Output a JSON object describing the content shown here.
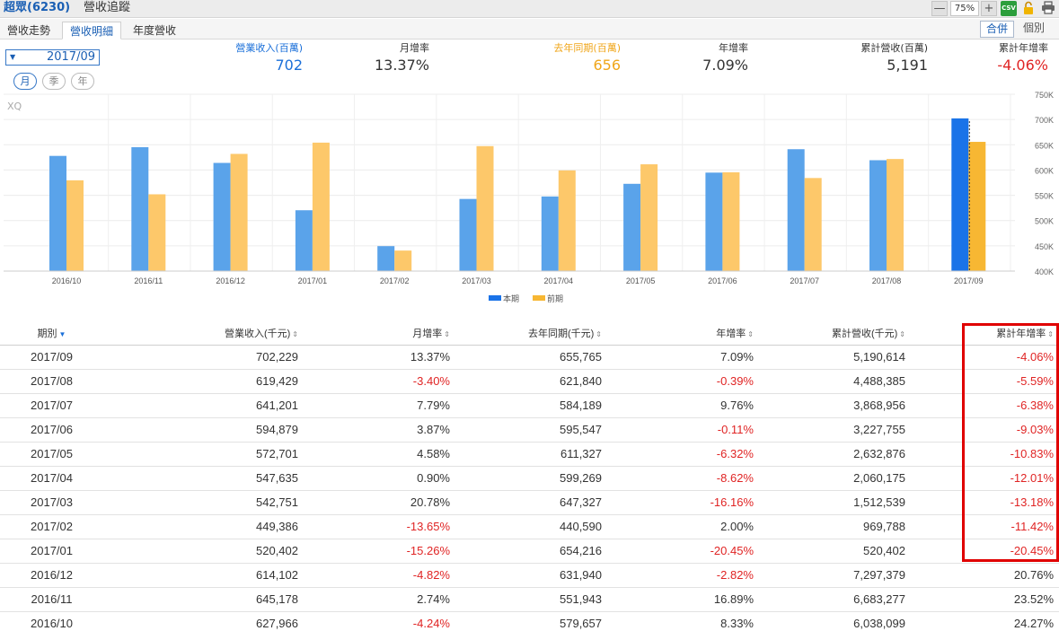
{
  "title": {
    "stock": "超眾(6230)",
    "page": "營收追蹤"
  },
  "toolbar": {
    "zoom": "75%",
    "csv": "CSV",
    "minus": "—",
    "plus": "+"
  },
  "tabs": [
    "營收走勢",
    "營收明細",
    "年度營收"
  ],
  "active_tab": "營收明細",
  "view_toggle": {
    "combined": "合併",
    "individual": "個別"
  },
  "period_select": {
    "value": "2017/09"
  },
  "period_types": [
    "月",
    "季",
    "年"
  ],
  "stats": [
    {
      "label": "營業收入(百萬)",
      "value": "702",
      "color": "blue"
    },
    {
      "label": "月增率",
      "value": "13.37%",
      "color": "dark"
    },
    {
      "label": "去年同期(百萬)",
      "value": "656",
      "color": "orange"
    },
    {
      "label": "年增率",
      "value": "7.09%",
      "color": "dark"
    },
    {
      "label": "累計營收(百萬)",
      "value": "5,191",
      "color": "dark"
    },
    {
      "label": "累計年增率",
      "value": "-4.06%",
      "color": "red"
    }
  ],
  "colors": {
    "current": "#5aa3ea",
    "current_highlight": "#1a73e8",
    "previous": "#fdc86a",
    "previous_highlight": "#f7b733",
    "negative": "#e02424",
    "box": "#e00000"
  },
  "chart_data": {
    "type": "bar",
    "watermark": "XQ",
    "categories": [
      "2016/10",
      "2016/11",
      "2016/12",
      "2017/01",
      "2017/02",
      "2017/03",
      "2017/04",
      "2017/05",
      "2017/06",
      "2017/07",
      "2017/08",
      "2017/09"
    ],
    "series": [
      {
        "name": "本期",
        "values": [
          627.966,
          645.178,
          614.102,
          520.402,
          449.386,
          542.751,
          547.635,
          572.701,
          594.879,
          641.201,
          619.429,
          702.229
        ]
      },
      {
        "name": "前期",
        "values": [
          579.657,
          551.943,
          631.94,
          654.216,
          440.59,
          647.327,
          599.269,
          611.327,
          595.547,
          584.189,
          621.84,
          655.765
        ]
      }
    ],
    "yticks": [
      "750K",
      "700K",
      "650K",
      "600K",
      "550K",
      "500K",
      "450K",
      "400K"
    ],
    "ylim": [
      400,
      750
    ],
    "legend": "bottom-center",
    "selected": "2017/09"
  },
  "table": {
    "headers": [
      "期別",
      "營業收入(千元)",
      "月增率",
      "去年同期(千元)",
      "年增率",
      "累計營收(千元)",
      "累計年增率"
    ],
    "rows": [
      [
        "2017/09",
        "702,229",
        "13.37%",
        "655,765",
        "7.09%",
        "5,190,614",
        "-4.06%"
      ],
      [
        "2017/08",
        "619,429",
        "-3.40%",
        "621,840",
        "-0.39%",
        "4,488,385",
        "-5.59%"
      ],
      [
        "2017/07",
        "641,201",
        "7.79%",
        "584,189",
        "9.76%",
        "3,868,956",
        "-6.38%"
      ],
      [
        "2017/06",
        "594,879",
        "3.87%",
        "595,547",
        "-0.11%",
        "3,227,755",
        "-9.03%"
      ],
      [
        "2017/05",
        "572,701",
        "4.58%",
        "611,327",
        "-6.32%",
        "2,632,876",
        "-10.83%"
      ],
      [
        "2017/04",
        "547,635",
        "0.90%",
        "599,269",
        "-8.62%",
        "2,060,175",
        "-12.01%"
      ],
      [
        "2017/03",
        "542,751",
        "20.78%",
        "647,327",
        "-16.16%",
        "1,512,539",
        "-13.18%"
      ],
      [
        "2017/02",
        "449,386",
        "-13.65%",
        "440,590",
        "2.00%",
        "969,788",
        "-11.42%"
      ],
      [
        "2017/01",
        "520,402",
        "-15.26%",
        "654,216",
        "-20.45%",
        "520,402",
        "-20.45%"
      ],
      [
        "2016/12",
        "614,102",
        "-4.82%",
        "631,940",
        "-2.82%",
        "7,297,379",
        "20.76%"
      ],
      [
        "2016/11",
        "645,178",
        "2.74%",
        "551,943",
        "16.89%",
        "6,683,277",
        "23.52%"
      ],
      [
        "2016/10",
        "627,966",
        "-4.24%",
        "579,657",
        "8.33%",
        "6,038,099",
        "24.27%"
      ]
    ]
  }
}
